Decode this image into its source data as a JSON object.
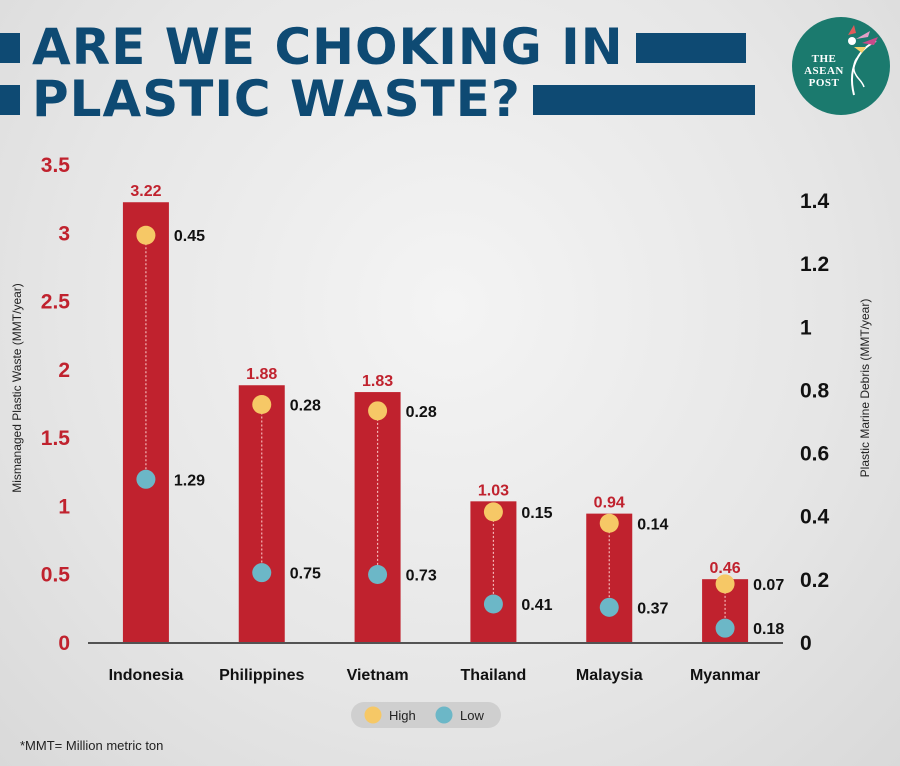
{
  "title": {
    "line1": "ARE WE CHOKING IN",
    "line2": "PLASTIC WASTE?"
  },
  "logo": {
    "text": "THE ASEAN POST",
    "icon": "bird-feather-icon"
  },
  "footnote": "*MMT= Million metric ton",
  "colors": {
    "title": "#0e4a73",
    "bar": "#c0222e",
    "bar_label": "#c0222e",
    "high": "#f6c866",
    "low": "#6cb7c7",
    "logo_bg": "#1b7a6e"
  },
  "chart_data": {
    "type": "bar",
    "categories": [
      "Indonesia",
      "Philippines",
      "Vietnam",
      "Thailand",
      "Malaysia",
      "Myanmar"
    ],
    "values": [
      3.22,
      1.88,
      1.83,
      1.03,
      0.94,
      0.46
    ],
    "ylabel": "Mismanaged Plastic Waste (MMT/year)",
    "y2label": "Plastic Marine Debris (MMT/year)",
    "ylim": [
      0,
      3.5
    ],
    "y2lim": [
      0,
      1.5
    ],
    "yticks": [
      "0",
      "0.5",
      "1",
      "1.5",
      "2",
      "2.5",
      "3",
      "3.5"
    ],
    "y2ticks": [
      "0",
      "0.2",
      "0.4",
      "0.6",
      "0.8",
      "1",
      "1.2",
      "1.4"
    ],
    "series": [
      {
        "name": "High",
        "values": [
          0.45,
          0.28,
          0.28,
          0.15,
          0.14,
          0.07
        ]
      },
      {
        "name": "Low",
        "values": [
          1.29,
          0.75,
          0.73,
          0.41,
          0.37,
          0.18
        ]
      }
    ],
    "legend": {
      "position": "bottom-center",
      "items": [
        "High",
        "Low"
      ]
    },
    "grid": false
  }
}
